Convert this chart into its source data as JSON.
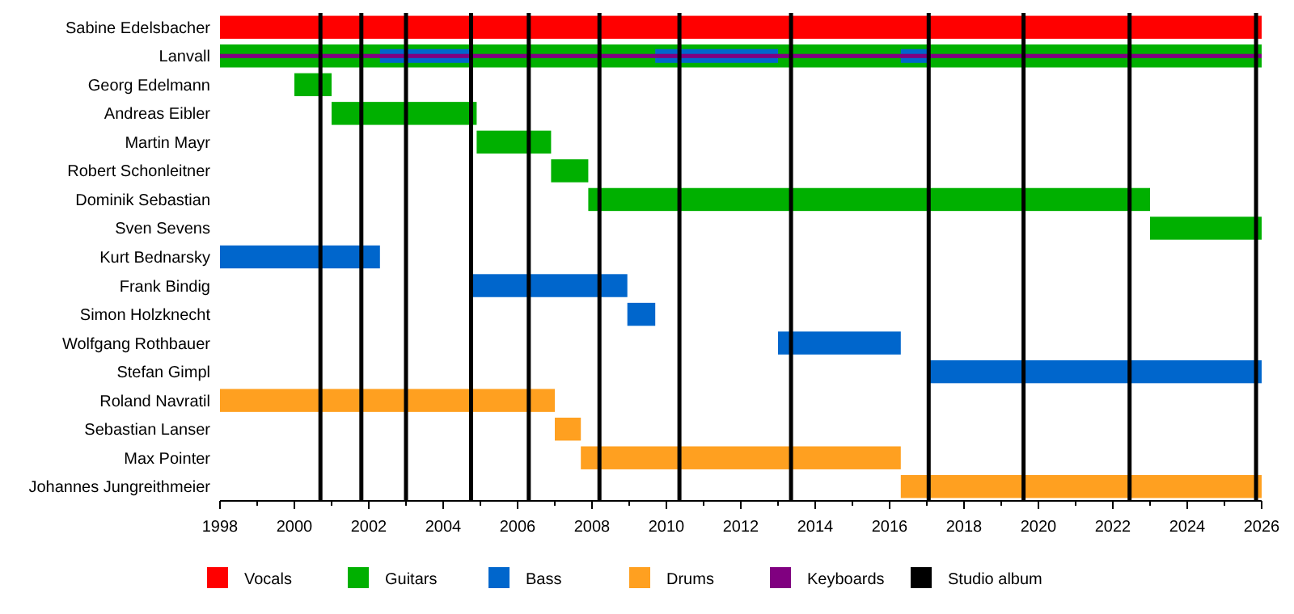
{
  "chart_data": {
    "type": "bar",
    "orientation": "horizontal",
    "legend": "bottom",
    "grid": false,
    "categories": [
      "Sabine Edelsbacher",
      "Lanvall",
      "Georg Edelmann",
      "Andreas Eibler",
      "Martin Mayr",
      "Robert Schonleitner",
      "Dominik Sebastian",
      "Sven Sevens",
      "Kurt Bednarsky",
      "Frank Bindig",
      "Simon Holzknecht",
      "Wolfgang Rothbauer",
      "Stefan Gimpl",
      "Roland Navratil",
      "Sebastian Lanser",
      "Max Pointer",
      "Johannes Jungreithmeier"
    ],
    "xlim": [
      1998,
      2026
    ],
    "xticks": [
      1998,
      {
        "value": 1999,
        "label": null
      },
      2000,
      {
        "value": 2001,
        "label": null
      },
      2002,
      {
        "value": 2003,
        "label": null
      },
      2004,
      {
        "value": 2005,
        "label": null
      },
      2006,
      {
        "value": 2007,
        "label": null
      },
      2008,
      {
        "value": 2009,
        "label": null
      },
      2010,
      {
        "value": 2011,
        "label": null
      },
      2012,
      {
        "value": 2013,
        "label": null
      },
      2014,
      {
        "value": 2015,
        "label": null
      },
      2016,
      {
        "value": 2017,
        "label": null
      },
      2018,
      {
        "value": 2019,
        "label": null
      },
      2020,
      {
        "value": 2021,
        "label": null
      },
      2022,
      {
        "value": 2023,
        "label": null
      },
      2024,
      {
        "value": 2025,
        "label": null
      },
      2026
    ],
    "series": [
      {
        "name": "Vocals",
        "color": "#ff0000",
        "base": [
          1998,
          null,
          null,
          null,
          null,
          null,
          null,
          null,
          null,
          null,
          null,
          null,
          null,
          null,
          null,
          null,
          null
        ],
        "values": [
          28,
          null,
          null,
          null,
          null,
          null,
          null,
          null,
          null,
          null,
          null,
          null,
          null,
          null,
          null,
          null,
          null
        ]
      },
      {
        "name": "Guitars",
        "color": "#00b000",
        "base": [
          null,
          1998,
          2000.0,
          2001.0,
          2004.9,
          2006.9,
          2007.9,
          2023.0,
          null,
          null,
          null,
          null,
          null,
          null,
          null,
          null,
          null
        ],
        "values": [
          null,
          28,
          1.0,
          3.9,
          2.0,
          1.0,
          15.1,
          3.0,
          null,
          null,
          null,
          null,
          null,
          null,
          null,
          null,
          null
        ]
      },
      {
        "name": "Bass",
        "color": "#0066cc",
        "base": [
          null,
          2002.3,
          null,
          null,
          null,
          null,
          null,
          null,
          1998,
          2004.8,
          2008.95,
          2013.0,
          2017.05,
          null,
          null,
          null,
          null
        ],
        "values": [
          null,
          2.5,
          null,
          null,
          null,
          null,
          null,
          null,
          4.3,
          4.15,
          0.75,
          3.3,
          8.95,
          null,
          null,
          null,
          null
        ]
      },
      {
        "color": "#0066cc",
        "base": [
          null,
          2009.7,
          null,
          null,
          null,
          null,
          null,
          null,
          null,
          null,
          null,
          null,
          null,
          null,
          null,
          null,
          null
        ],
        "values": [
          null,
          3.3,
          null,
          null,
          null,
          null,
          null,
          null,
          null,
          null,
          null,
          null,
          null,
          null,
          null,
          null,
          null
        ]
      },
      {
        "color": "#0066cc",
        "base": [
          null,
          2016.3,
          null,
          null,
          null,
          null,
          null,
          null,
          null,
          null,
          null,
          null,
          null,
          null,
          null,
          null,
          null
        ],
        "values": [
          null,
          0.75,
          null,
          null,
          null,
          null,
          null,
          null,
          null,
          null,
          null,
          null,
          null,
          null,
          null,
          null,
          null
        ]
      },
      {
        "name": "Drums",
        "color": "#ffa020",
        "base": [
          null,
          null,
          null,
          null,
          null,
          null,
          null,
          null,
          null,
          null,
          null,
          null,
          null,
          1998,
          2007.0,
          2007.7,
          2016.3
        ],
        "values": [
          null,
          null,
          null,
          null,
          null,
          null,
          null,
          null,
          null,
          null,
          null,
          null,
          null,
          9.0,
          0.7,
          8.6,
          9.7
        ]
      },
      {
        "name": "Keyboards",
        "color": "#800080",
        "base": [
          null,
          1998,
          null,
          null,
          null,
          null,
          null,
          null,
          null,
          null,
          null,
          null,
          null,
          null,
          null,
          null,
          null
        ],
        "values": [
          null,
          28,
          null,
          null,
          null,
          null,
          null,
          null,
          null,
          null,
          null,
          null,
          null,
          null,
          null,
          null,
          null
        ]
      }
    ],
    "ref_lines": [
      {
        "axis": "x",
        "value": 2000.7,
        "color": "#000000"
      },
      {
        "axis": "x",
        "value": 2001.8,
        "color": "#000000"
      },
      {
        "axis": "x",
        "value": 2003.0,
        "color": "#000000"
      },
      {
        "axis": "x",
        "value": 2004.75,
        "color": "#000000"
      },
      {
        "axis": "x",
        "value": 2006.3,
        "color": "#000000"
      },
      {
        "axis": "x",
        "value": 2008.2,
        "color": "#000000"
      },
      {
        "axis": "x",
        "value": 2010.35,
        "color": "#000000"
      },
      {
        "axis": "x",
        "value": 2013.35,
        "color": "#000000"
      },
      {
        "axis": "x",
        "value": 2017.05,
        "color": "#000000"
      },
      {
        "axis": "x",
        "value": 2019.6,
        "color": "#000000"
      },
      {
        "axis": "x",
        "value": 2022.45,
        "color": "#000000"
      },
      {
        "axis": "x",
        "value": 2025.85,
        "color": "#000000"
      }
    ],
    "annotations": [
      "Studio album"
    ]
  }
}
